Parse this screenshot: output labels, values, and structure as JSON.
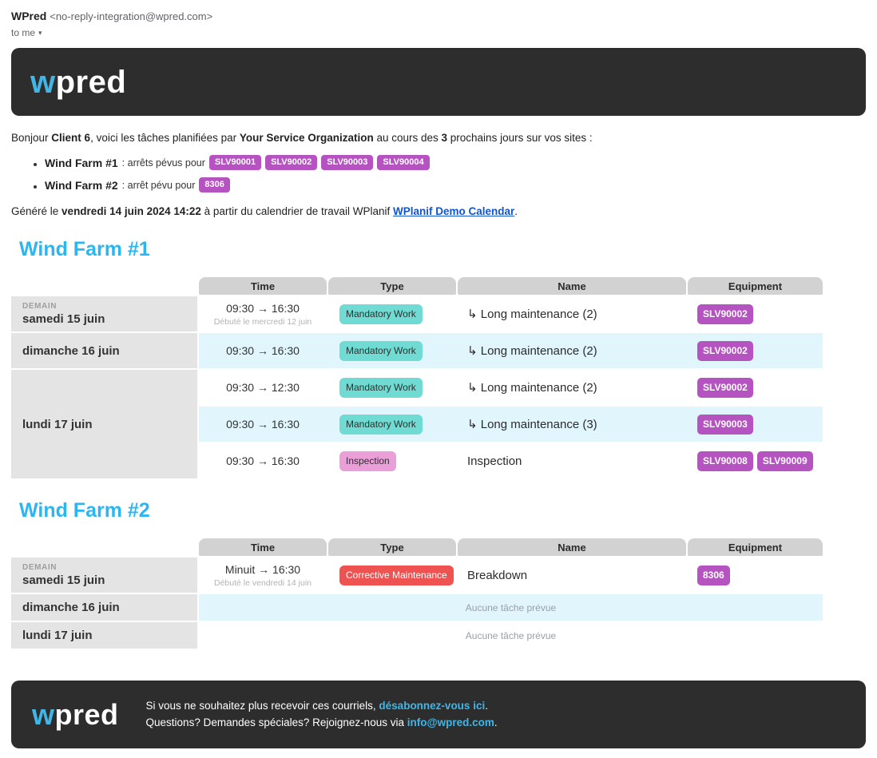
{
  "email_header": {
    "sender_name": "WPred",
    "sender_address": "<no-reply-integration@wpred.com>",
    "to_line": "to me",
    "caret": "▾"
  },
  "brand": {
    "logo_first_letter": "w",
    "logo_rest": "pred",
    "banner_bg": "#2d2d2d",
    "logo_blue": "#41b6e6"
  },
  "intro": {
    "part1": "Bonjour ",
    "bold1": "Client 6",
    "part2": ", voici les tâches planifiées par ",
    "bold2": "Your Service Organization",
    "part3": " au cours des ",
    "bold3": "3",
    "part4": " prochains jours sur vos sites :"
  },
  "summary_bullets": [
    {
      "site": "Wind Farm #1",
      "text": ": arrêts pévus pour",
      "badges": [
        "SLV90001",
        "SLV90002",
        "SLV90003",
        "SLV90004"
      ]
    },
    {
      "site": "Wind Farm #2",
      "text": ": arrêt pévu pour",
      "badges": [
        "8306"
      ]
    }
  ],
  "generated_line": {
    "prefix": "Généré le ",
    "datetime": "vendredi 14 juin 2024 14:22",
    "middle": " à partir du calendrier de travail WPlanif ",
    "link": "WPlanif Demo Calendar",
    "suffix": "."
  },
  "table_headers": [
    "Time",
    "Type",
    "Name",
    "Equipment"
  ],
  "colors": {
    "accent_heading": "#29b6f2",
    "badge_purple": "#b553c0",
    "stripe_blue": "#e1f5fd",
    "header_gray": "#d2d2d2",
    "date_gray": "#e4e4e4"
  },
  "sites": [
    {
      "title": "Wind Farm #1",
      "day_groups": [
        {
          "tag": "DEMAIN",
          "date": "samedi 15 juin",
          "rows": [
            {
              "time": "09:30 → 16:30",
              "time_note": "Débuté le mercredi 12 juin",
              "type": "Mandatory Work",
              "type_bg": "#6fdbd2",
              "type_fg": "#2f2f2f",
              "name": "↳ Long maintenance (2)",
              "equipment": [
                "SLV90002"
              ]
            }
          ]
        },
        {
          "tag": "",
          "date": "dimanche 16 juin",
          "rows": [
            {
              "time": "09:30 → 16:30",
              "time_note": "",
              "type": "Mandatory Work",
              "type_bg": "#6fdbd2",
              "type_fg": "#2f2f2f",
              "name": "↳ Long maintenance (2)",
              "equipment": [
                "SLV90002"
              ]
            }
          ]
        },
        {
          "tag": "",
          "date": "lundi 17 juin",
          "rows": [
            {
              "time": "09:30 → 12:30",
              "time_note": "",
              "type": "Mandatory Work",
              "type_bg": "#6fdbd2",
              "type_fg": "#2f2f2f",
              "name": "↳ Long maintenance (2)",
              "equipment": [
                "SLV90002"
              ]
            },
            {
              "time": "09:30 → 16:30",
              "time_note": "",
              "type": "Mandatory Work",
              "type_bg": "#6fdbd2",
              "type_fg": "#2f2f2f",
              "name": "↳ Long maintenance (3)",
              "equipment": [
                "SLV90003"
              ]
            },
            {
              "time": "09:30 → 16:30",
              "time_note": "",
              "type": "Inspection",
              "type_bg": "#eb9fd8",
              "type_fg": "#2f2f2f",
              "name": "Inspection",
              "equipment": [
                "SLV90008",
                "SLV90009"
              ]
            }
          ]
        }
      ]
    },
    {
      "title": "Wind Farm #2",
      "day_groups": [
        {
          "tag": "DEMAIN",
          "date": "samedi 15 juin",
          "rows": [
            {
              "time": "Minuit → 16:30",
              "time_note": "Débuté le vendredi 14 juin",
              "type": "Corrective Maintenance",
              "type_bg": "#ee5351",
              "type_fg": "#ffffff",
              "name": "Breakdown",
              "equipment": [
                "8306"
              ]
            }
          ]
        },
        {
          "tag": "",
          "date": "dimanche 16 juin",
          "rows": [
            {
              "empty": "Aucune tâche prévue"
            }
          ]
        },
        {
          "tag": "",
          "date": "lundi 17 juin",
          "rows": [
            {
              "empty": "Aucune tâche prévue"
            }
          ]
        }
      ]
    }
  ],
  "footer": {
    "line1_prefix": "Si vous ne souhaitez plus recevoir ces courriels, ",
    "line1_link": "désabonnez-vous ici",
    "line1_suffix": ".",
    "line2_prefix": "Questions? Demandes spéciales? Rejoignez-nous via ",
    "line2_link": "info@wpred.com",
    "line2_suffix": "."
  }
}
